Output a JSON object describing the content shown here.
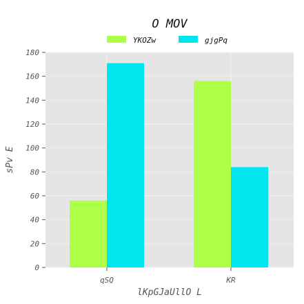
{
  "chart_data": {
    "type": "bar",
    "title": "O MOV",
    "xlabel": "lKpGJaUllO L",
    "ylabel": "sPv E",
    "categories": [
      "qSQ",
      "KR"
    ],
    "series": [
      {
        "name": "YKOZw",
        "color": "#adff47",
        "values": [
          56,
          156
        ]
      },
      {
        "name": "gjgPq",
        "color": "#00e5ee",
        "values": [
          171,
          84
        ]
      }
    ],
    "ylim": [
      0,
      180
    ],
    "yticks": [
      0,
      20,
      40,
      60,
      80,
      100,
      120,
      140,
      160,
      180
    ],
    "grid": true,
    "legend_position": "top-center",
    "background": "#e5e5e5"
  }
}
